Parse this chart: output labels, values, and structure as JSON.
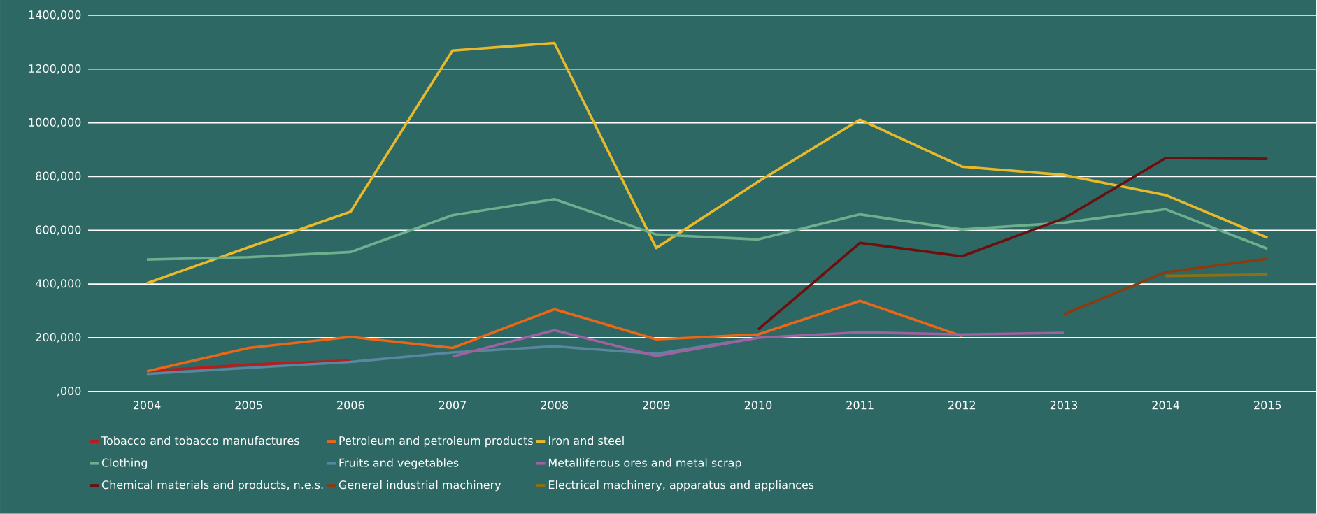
{
  "chart_data": {
    "type": "line",
    "categories": [
      "2004",
      "2005",
      "2006",
      "2007",
      "2008",
      "2009",
      "2010",
      "2011",
      "2012",
      "2013",
      "2014",
      "2015"
    ],
    "series": [
      {
        "name": "Tobacco and tobacco manufactures",
        "color": "#b81c1c",
        "values": [
          75000,
          100000,
          115000,
          null,
          null,
          null,
          null,
          null,
          null,
          null,
          null,
          null
        ]
      },
      {
        "name": "Petroleum and petroleum products",
        "color": "#ea6718",
        "values": [
          75000,
          162000,
          203000,
          162000,
          306000,
          194000,
          212000,
          337000,
          206000,
          null,
          null,
          null
        ]
      },
      {
        "name": "Iron and steel",
        "color": "#e9b92a",
        "values": [
          403000,
          537000,
          669000,
          1269000,
          1297000,
          534000,
          781000,
          1012000,
          837000,
          806000,
          731000,
          572000
        ]
      },
      {
        "name": "Clothing",
        "color": "#6db08e",
        "values": [
          491000,
          500000,
          519000,
          656000,
          716000,
          584000,
          566000,
          659000,
          603000,
          628000,
          678000,
          531000
        ]
      },
      {
        "name": "Fruits and vegetables",
        "color": "#5a87a0",
        "values": [
          65000,
          88000,
          110000,
          145000,
          168000,
          140000,
          200000,
          null,
          null,
          null,
          null,
          null
        ]
      },
      {
        "name": "Metalliferous ores and metal scrap",
        "color": "#a061a0",
        "values": [
          null,
          null,
          null,
          130000,
          228000,
          132000,
          200000,
          220000,
          212000,
          218000,
          null,
          null
        ]
      },
      {
        "name": "Chemical materials and products, n.e.s.",
        "color": "#6b0f0f",
        "values": [
          null,
          null,
          null,
          null,
          null,
          null,
          231000,
          553000,
          503000,
          644000,
          869000,
          866000
        ]
      },
      {
        "name": "General industrial machinery",
        "color": "#8f3a0c",
        "values": [
          null,
          null,
          null,
          null,
          null,
          null,
          null,
          null,
          null,
          287000,
          444000,
          494000
        ]
      },
      {
        "name": "Electrical machinery, apparatus and appliances",
        "color": "#8c7012",
        "values": [
          null,
          null,
          null,
          null,
          null,
          null,
          null,
          null,
          null,
          null,
          430000,
          435000
        ]
      }
    ],
    "ylim": [
      0,
      1400000
    ],
    "yticks": [
      {
        "value": 0,
        "label": ",000"
      },
      {
        "value": 200000,
        "label": "200,000"
      },
      {
        "value": 400000,
        "label": "400,000"
      },
      {
        "value": 600000,
        "label": "600,000"
      },
      {
        "value": 800000,
        "label": "800,000"
      },
      {
        "value": 1000000,
        "label": "1000,000"
      },
      {
        "value": 1200000,
        "label": "1200,000"
      },
      {
        "value": 1400000,
        "label": "1400,000"
      }
    ],
    "grid": "y",
    "legend": "bottom",
    "marker": "none",
    "line_style": "solid"
  }
}
